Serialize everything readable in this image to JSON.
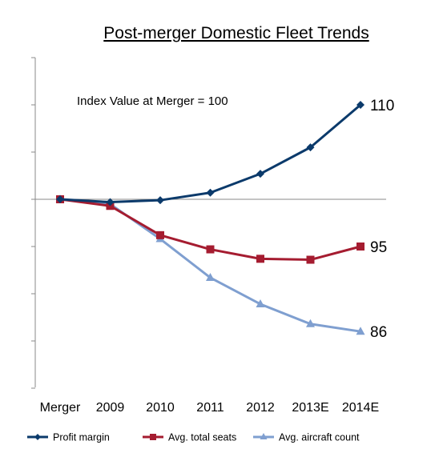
{
  "chart_data": {
    "type": "line",
    "title": "Post-merger Domestic Fleet Trends",
    "annotation": "Index Value at Merger = 100",
    "xlabel": "",
    "ylabel": "",
    "categories": [
      "Merger",
      "2009",
      "2010",
      "2011",
      "2012",
      "2013E",
      "2014E"
    ],
    "ylim": [
      80,
      115
    ],
    "ytick_step": 5,
    "y_tick_labels_shown": false,
    "grid": false,
    "legend_position": "bottom",
    "series": [
      {
        "name": "Profit margin",
        "color": "#0b3a6b",
        "marker": "diamond",
        "values": [
          100,
          99.7,
          99.9,
          100.7,
          102.7,
          105.5,
          110
        ],
        "end_label": "110"
      },
      {
        "name": "Avg. total seats",
        "color": "#a51c30",
        "marker": "square",
        "values": [
          100,
          99.3,
          96.2,
          94.7,
          93.7,
          93.6,
          95
        ],
        "end_label": "95"
      },
      {
        "name": "Avg. aircraft count",
        "color": "#7f9fd0",
        "marker": "triangle",
        "values": [
          100,
          99.5,
          95.8,
          91.7,
          88.9,
          86.8,
          86
        ],
        "end_label": "86"
      }
    ]
  }
}
